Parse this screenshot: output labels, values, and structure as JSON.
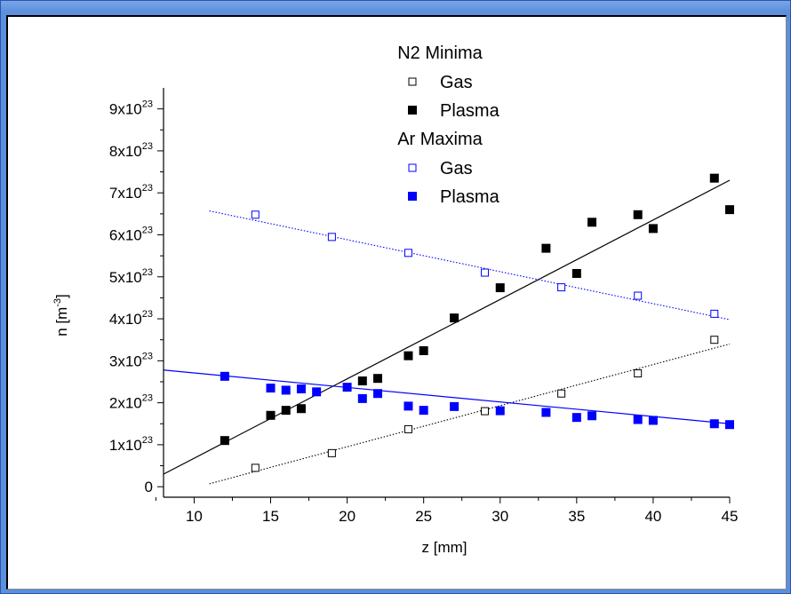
{
  "chart_data": {
    "type": "scatter",
    "xlabel": "z [mm]",
    "ylabel": "n [m-3]",
    "xlim": [
      8,
      45
    ],
    "ylim": [
      -2.5e+22,
      9.5e+23
    ],
    "x_ticks": [
      10,
      15,
      20,
      25,
      30,
      35,
      40,
      45
    ],
    "y_ticks": [
      {
        "value": 0,
        "mantissa": "0",
        "exp": ""
      },
      {
        "value": 1e+23,
        "mantissa": "1x10",
        "exp": "23"
      },
      {
        "value": 2e+23,
        "mantissa": "2x10",
        "exp": "23"
      },
      {
        "value": 3e+23,
        "mantissa": "3x10",
        "exp": "23"
      },
      {
        "value": 4e+23,
        "mantissa": "4x10",
        "exp": "23"
      },
      {
        "value": 5e+23,
        "mantissa": "5x10",
        "exp": "23"
      },
      {
        "value": 6e+23,
        "mantissa": "6x10",
        "exp": "23"
      },
      {
        "value": 7e+23,
        "mantissa": "7x10",
        "exp": "23"
      },
      {
        "value": 8e+23,
        "mantissa": "8x10",
        "exp": "23"
      },
      {
        "value": 9e+23,
        "mantissa": "9x10",
        "exp": "23"
      }
    ],
    "legend_groups": [
      "N2 Minima",
      "Ar Maxima"
    ],
    "legend_position": "top-center",
    "series": [
      {
        "name": "Gas",
        "group": "N2 Minima",
        "color": "#000000",
        "marker": "open-square",
        "x": [
          14,
          19,
          24,
          29,
          34,
          39,
          44
        ],
        "y": [
          4.5e+22,
          8e+22,
          1.37e+23,
          1.8e+23,
          2.22e+23,
          2.7e+23,
          3.5e+23
        ],
        "fit": {
          "x": [
            11,
            45
          ],
          "y": [
            7e+21,
            3.4e+23
          ],
          "style": "dotted"
        }
      },
      {
        "name": "Plasma",
        "group": "N2 Minima",
        "color": "#000000",
        "marker": "filled-square",
        "x": [
          12,
          15,
          16,
          17,
          21,
          22,
          24,
          25,
          27,
          30,
          33,
          35,
          36,
          39,
          40,
          44,
          45
        ],
        "y": [
          1.1e+23,
          1.7e+23,
          1.82e+23,
          1.86e+23,
          2.52e+23,
          2.58e+23,
          3.12e+23,
          3.24e+23,
          4.02e+23,
          4.74e+23,
          5.68e+23,
          5.08e+23,
          6.3e+23,
          6.48e+23,
          6.15e+23,
          7.35e+23,
          6.6e+23
        ],
        "fit": {
          "x": [
            8,
            45
          ],
          "y": [
            3e+22,
            7.3e+23
          ],
          "style": "solid"
        }
      },
      {
        "name": "Gas",
        "group": "Ar Maxima",
        "color": "#0000ff",
        "marker": "open-square",
        "x": [
          14,
          19,
          24,
          29,
          34,
          39,
          44
        ],
        "y": [
          6.48e+23,
          5.95e+23,
          5.57e+23,
          5.1e+23,
          4.75e+23,
          4.55e+23,
          4.12e+23
        ],
        "fit": {
          "x": [
            11,
            45
          ],
          "y": [
            6.57e+23,
            3.98e+23
          ],
          "style": "dotted"
        }
      },
      {
        "name": "Plasma",
        "group": "Ar Maxima",
        "color": "#0000ff",
        "marker": "filled-square",
        "x": [
          12,
          15,
          16,
          17,
          18,
          20,
          21,
          22,
          24,
          25,
          27,
          30,
          33,
          35,
          36,
          39,
          40,
          44,
          45
        ],
        "y": [
          2.63e+23,
          2.35e+23,
          2.3e+23,
          2.33e+23,
          2.26e+23,
          2.37e+23,
          2.1e+23,
          2.22e+23,
          1.92e+23,
          1.82e+23,
          1.91e+23,
          1.81e+23,
          1.77e+23,
          1.65e+23,
          1.69e+23,
          1.6e+23,
          1.58e+23,
          1.5e+23,
          1.48e+23
        ],
        "fit": {
          "x": [
            8,
            45
          ],
          "y": [
            2.78e+23,
            1.5e+23
          ],
          "style": "solid"
        }
      }
    ]
  }
}
